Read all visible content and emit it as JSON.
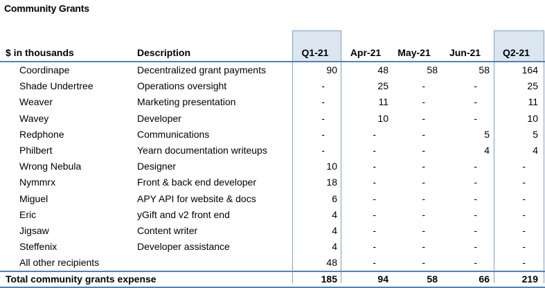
{
  "title": "Community Grants",
  "header": {
    "name": "$ in thousands",
    "desc": "Description",
    "q1": "Q1-21",
    "apr": "Apr-21",
    "may": "May-21",
    "jun": "Jun-21",
    "q2": "Q2-21"
  },
  "rows": [
    {
      "name": "Coordinape",
      "desc": "Decentralized grant payments",
      "q1": "90",
      "apr": "48",
      "may": "58",
      "jun": "58",
      "q2": "164"
    },
    {
      "name": "Shade Undertree",
      "desc": "Operations oversight",
      "q1": "-",
      "apr": "25",
      "may": "-",
      "jun": "-",
      "q2": "25"
    },
    {
      "name": "Weaver",
      "desc": "Marketing presentation",
      "q1": "-",
      "apr": "11",
      "may": "-",
      "jun": "-",
      "q2": "11"
    },
    {
      "name": "Wavey",
      "desc": "Developer",
      "q1": "-",
      "apr": "10",
      "may": "-",
      "jun": "-",
      "q2": "10"
    },
    {
      "name": "Redphone",
      "desc": "Communications",
      "q1": "-",
      "apr": "-",
      "may": "-",
      "jun": "5",
      "q2": "5"
    },
    {
      "name": "Philbert",
      "desc": "Yearn documentation writeups",
      "q1": "-",
      "apr": "-",
      "may": "-",
      "jun": "4",
      "q2": "4"
    },
    {
      "name": "Wrong Nebula",
      "desc": "Designer",
      "q1": "10",
      "apr": "-",
      "may": "-",
      "jun": "-",
      "q2": "-"
    },
    {
      "name": "Nymmrx",
      "desc": "Front & back end developer",
      "q1": "18",
      "apr": "-",
      "may": "-",
      "jun": "-",
      "q2": "-"
    },
    {
      "name": "Miguel",
      "desc": "APY API for website & docs",
      "q1": "6",
      "apr": "-",
      "may": "-",
      "jun": "-",
      "q2": "-"
    },
    {
      "name": "Eric",
      "desc": "yGift and v2 front end",
      "q1": "4",
      "apr": "-",
      "may": "-",
      "jun": "-",
      "q2": "-"
    },
    {
      "name": "Jigsaw",
      "desc": "Content writer",
      "q1": "4",
      "apr": "-",
      "may": "-",
      "jun": "-",
      "q2": "-"
    },
    {
      "name": "Steffenix",
      "desc": "Developer assistance",
      "q1": "4",
      "apr": "-",
      "may": "-",
      "jun": "-",
      "q2": "-"
    },
    {
      "name": "All other recipients",
      "desc": "",
      "q1": "48",
      "apr": "-",
      "may": "-",
      "jun": "-",
      "q2": "-"
    }
  ],
  "total": {
    "name": "Total community grants expense",
    "q1": "185",
    "apr": "94",
    "may": "58",
    "jun": "66",
    "q2": "219"
  },
  "colors": {
    "highlight_fill": "#dce6f1",
    "rule": "#4f81bd"
  }
}
